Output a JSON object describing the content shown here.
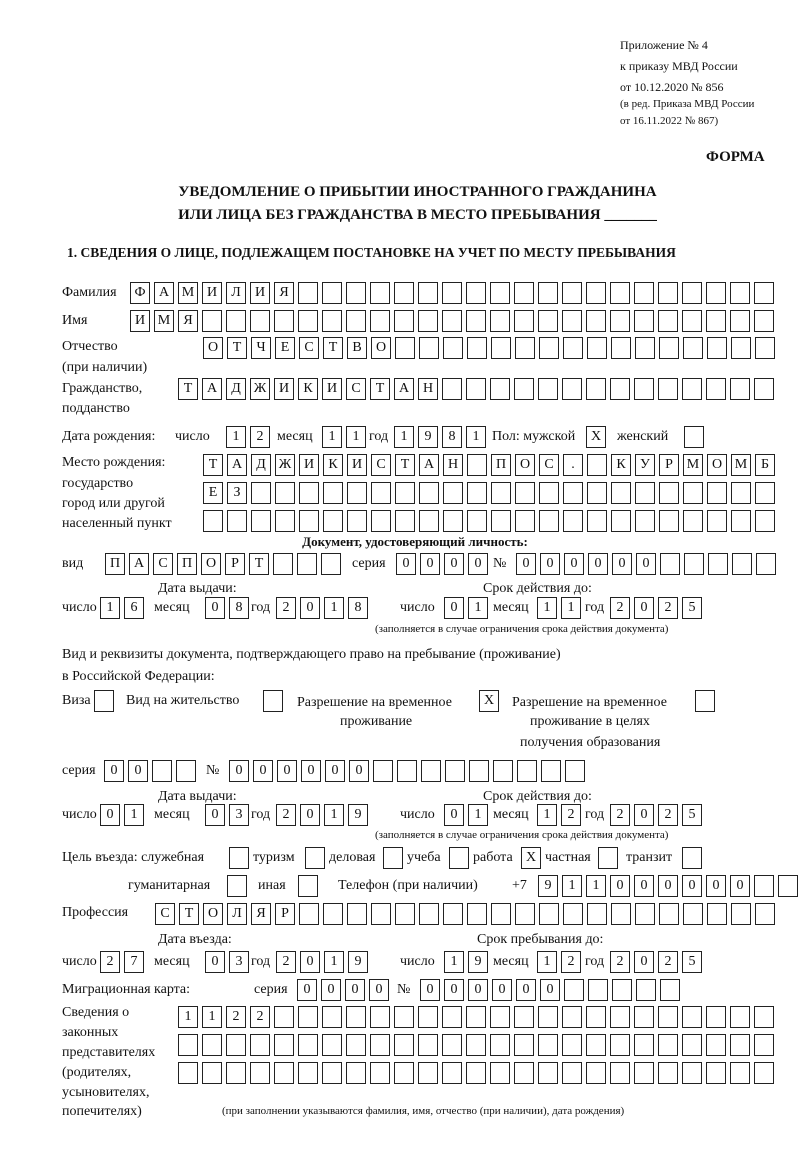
{
  "header": {
    "appendix": "Приложение № 4",
    "order": "к приказу МВД России",
    "order_date": "от 10.12.2020 № 856",
    "edit1": "(в ред. Приказа МВД России",
    "edit2": "от 16.11.2022 № 867)",
    "form": "ФОРМА",
    "title1": "УВЕДОМЛЕНИЕ О ПРИБЫТИИ ИНОСТРАННОГО ГРАЖДАНИНА",
    "title2": "ИЛИ ЛИЦА БЕЗ ГРАЖДАНСТВА В МЕСТО ПРЕБЫВАНИЯ _______",
    "section1": "1. СВЕДЕНИЯ О ЛИЦЕ, ПОДЛЕЖАЩЕМ ПОСТАНОВКЕ НА УЧЕТ ПО МЕСТУ ПРЕБЫВАНИЯ"
  },
  "labels": {
    "surname": "Фамилия",
    "name": "Имя",
    "patronymic": "Отчество",
    "patronymic2": "(при наличии)",
    "citizenship": "Гражданство,",
    "citizenship2": "подданство",
    "birth_date": "Дата рождения:",
    "day": "число",
    "month": "месяц",
    "year": "год",
    "sex": "Пол: мужской",
    "female": "женский",
    "birthplace": "Место рождения:",
    "birthplace2": "государство",
    "birthplace3": "город или другой",
    "birthplace4": "населенный пункт",
    "id_doc": "Документ, удостоверяющий личность:",
    "kind": "вид",
    "series": "серия",
    "number": "№",
    "issue_date": "Дата выдачи:",
    "valid_until": "Срок действия до:",
    "valid_note": "(заполняется в случае ограничения срока действия документа)",
    "right_doc1": "Вид и реквизиты документа, подтверждающего право на пребывание (проживание)",
    "right_doc2": "в Российской Федерации:",
    "visa": "Виза",
    "residence": "Вид на жительство",
    "temp_permit1": "Разрешение на временное",
    "temp_permit2": "проживание",
    "temp_edu1": "Разрешение на временное",
    "temp_edu2": "проживание в целях",
    "temp_edu3": "получения образования",
    "purpose": "Цель въезда: служебная",
    "tourism": "туризм",
    "business": "деловая",
    "study": "учеба",
    "work": "работа",
    "private": "частная",
    "transit": "транзит",
    "humanitarian": "гуманитарная",
    "other": "иная",
    "phone": "Телефон (при наличии)",
    "phone_prefix": "+7",
    "profession": "Профессия",
    "entry_date": "Дата въезда:",
    "stay_until": "Срок пребывания до:",
    "migration_card": "Миграционная карта:",
    "reps1": "Сведения о",
    "reps2": "законных",
    "reps3": "представителях",
    "reps4": "(родителях,",
    "reps5": "усыновителях,",
    "reps6": "попечителях)",
    "reps_note": "(при заполнении указываются фамилия, имя, отчество (при наличии), дата рождения)"
  },
  "values": {
    "surname": "ФАМИЛИЯ",
    "name": "ИМЯ",
    "patronymic": "ОТЧЕСТВО",
    "citizenship": "ТАДЖИКИСТАН",
    "birth_day": "12",
    "birth_month": "11",
    "birth_year": "1981",
    "sex_male": "X",
    "sex_female": "",
    "birthplace1": "ТАДЖИКИСТАН ПОС. КУРМОМБ",
    "birthplace2": "ЕЗ",
    "birthplace3": "",
    "doc_kind": "ПАСПОРТ",
    "doc_series": "0000",
    "doc_number": "000000",
    "doc_issue_day": "16",
    "doc_issue_month": "08",
    "doc_issue_year": "2018",
    "doc_valid_day": "01",
    "doc_valid_month": "11",
    "doc_valid_year": "2025",
    "visa": "",
    "residence": "",
    "temp_permit": "X",
    "temp_edu": "",
    "right_series": "00",
    "right_number": "000000",
    "right_issue_day": "01",
    "right_issue_month": "03",
    "right_issue_year": "2019",
    "right_valid_day": "01",
    "right_valid_month": "12",
    "right_valid_year": "2025",
    "p_service": "",
    "p_tourism": "",
    "p_business": "",
    "p_study": "",
    "p_work": "X",
    "p_private": "",
    "p_transit": "",
    "p_humanitarian": "",
    "p_other": "",
    "phone": "911000000",
    "profession": "СТОЛЯР",
    "entry_day": "27",
    "entry_month": "03",
    "entry_year": "2019",
    "stay_day": "19",
    "stay_month": "12",
    "stay_year": "2025",
    "mig_series": "0000",
    "mig_number": "000000",
    "reps1": "1122",
    "reps2": "",
    "reps3": ""
  }
}
